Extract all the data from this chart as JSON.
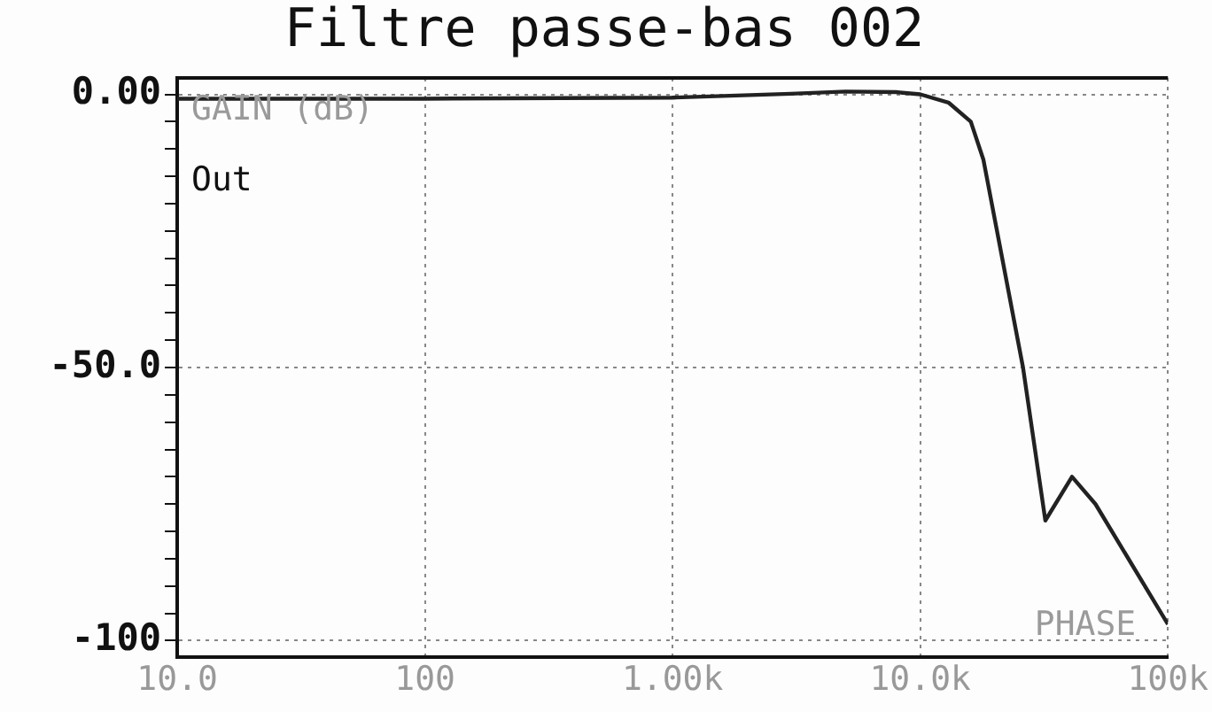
{
  "chart_data": {
    "type": "line",
    "title": "Filtre passe-bas 002",
    "log": "x",
    "x": [
      10,
      100,
      1000,
      3000,
      5000,
      8000,
      10000,
      13000,
      16000,
      18000,
      26000,
      32000,
      41000,
      51000,
      100000
    ],
    "series": [
      {
        "color": "#222222",
        "values": [
          -0.8,
          -0.8,
          -0.6,
          0.1,
          0.5,
          0.4,
          0,
          -1.5,
          -5,
          -12,
          -50,
          -78,
          -70,
          -75,
          -97
        ]
      }
    ],
    "xlim": [
      10,
      100000
    ],
    "xticks": [
      {
        "value": 10,
        "label": "10.0"
      },
      100,
      {
        "value": 1000,
        "label": "1.00k"
      },
      {
        "value": 10000,
        "label": "10.0k"
      },
      {
        "value": 100000,
        "label": "100k"
      }
    ],
    "ylim": [
      -103,
      3
    ],
    "yticks": [
      {
        "value": 0,
        "label": "0.00"
      },
      {
        "value": -5,
        "label": null
      },
      {
        "value": -10,
        "label": null
      },
      {
        "value": -15,
        "label": null
      },
      {
        "value": -20,
        "label": null
      },
      {
        "value": -25,
        "label": null
      },
      {
        "value": -30,
        "label": null
      },
      {
        "value": -35,
        "label": null
      },
      {
        "value": -40,
        "label": null
      },
      {
        "value": -45,
        "label": null
      },
      {
        "value": -50,
        "label": "-50.0"
      },
      {
        "value": -55,
        "label": null
      },
      {
        "value": -60,
        "label": null
      },
      {
        "value": -65,
        "label": null
      },
      {
        "value": -70,
        "label": null
      },
      {
        "value": -75,
        "label": null
      },
      {
        "value": -80,
        "label": null
      },
      {
        "value": -85,
        "label": null
      },
      {
        "value": -90,
        "label": null
      },
      {
        "value": -95,
        "label": null
      },
      {
        "value": -100,
        "label": "-100"
      }
    ],
    "grid": true,
    "legend": false,
    "marker": "none",
    "line_style": "solid",
    "annotations": [
      "GAIN (dB)",
      "Out",
      "PHASE"
    ]
  }
}
